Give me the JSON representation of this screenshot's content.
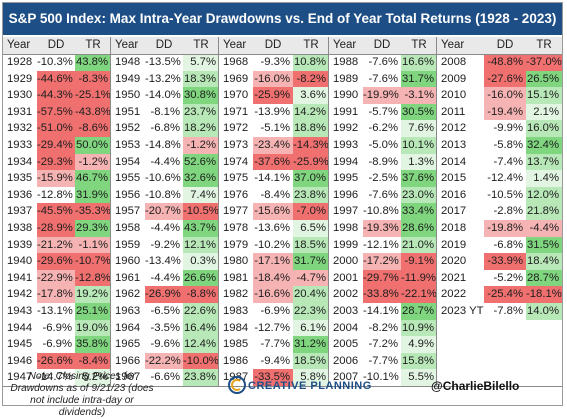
{
  "title": "S&P 500 Index: Max Intra-Year Drawdowns vs. End of Year Total Returns (1928 - 2023)",
  "headers": {
    "year": "Year",
    "dd": "DD",
    "tr": "TR"
  },
  "colors": {
    "title_bg": "#1d4f86",
    "positive": "#7fd67f",
    "negative": "#f07070",
    "header_bg": "#e9e9e9"
  },
  "columns": [
    [
      [
        "1928",
        "-10.3%",
        "43.8%"
      ],
      [
        "1929",
        "-44.6%",
        "-8.3%"
      ],
      [
        "1930",
        "-44.3%",
        "-25.1%"
      ],
      [
        "1931",
        "-57.5%",
        "-43.8%"
      ],
      [
        "1932",
        "-51.0%",
        "-8.6%"
      ],
      [
        "1933",
        "-29.4%",
        "50.0%"
      ],
      [
        "1934",
        "-29.3%",
        "-1.2%"
      ],
      [
        "1935",
        "-15.9%",
        "46.7%"
      ],
      [
        "1936",
        "-12.8%",
        "31.9%"
      ],
      [
        "1937",
        "-45.5%",
        "-35.3%"
      ],
      [
        "1938",
        "-28.9%",
        "29.3%"
      ],
      [
        "1939",
        "-21.2%",
        "-1.1%"
      ],
      [
        "1940",
        "-29.6%",
        "-10.7%"
      ],
      [
        "1941",
        "-22.9%",
        "-12.8%"
      ],
      [
        "1942",
        "-17.8%",
        "19.2%"
      ],
      [
        "1943",
        "-13.1%",
        "25.1%"
      ],
      [
        "1944",
        "-6.9%",
        "19.0%"
      ],
      [
        "1945",
        "-6.9%",
        "35.8%"
      ],
      [
        "1946",
        "-26.6%",
        "-8.4%"
      ],
      [
        "1947",
        "-14.7%",
        "5.2%"
      ]
    ],
    [
      [
        "1948",
        "-13.5%",
        "5.7%"
      ],
      [
        "1949",
        "-13.2%",
        "18.3%"
      ],
      [
        "1950",
        "-14.0%",
        "30.8%"
      ],
      [
        "1951",
        "-8.1%",
        "23.7%"
      ],
      [
        "1952",
        "-6.8%",
        "18.2%"
      ],
      [
        "1953",
        "-14.8%",
        "-1.2%"
      ],
      [
        "1954",
        "-4.4%",
        "52.6%"
      ],
      [
        "1955",
        "-10.6%",
        "32.6%"
      ],
      [
        "1956",
        "-10.8%",
        "7.4%"
      ],
      [
        "1957",
        "-20.7%",
        "-10.5%"
      ],
      [
        "1958",
        "-4.4%",
        "43.7%"
      ],
      [
        "1959",
        "-9.2%",
        "12.1%"
      ],
      [
        "1960",
        "-13.4%",
        "0.3%"
      ],
      [
        "1961",
        "-4.4%",
        "26.6%"
      ],
      [
        "1962",
        "-26.9%",
        "-8.8%"
      ],
      [
        "1963",
        "-6.5%",
        "22.6%"
      ],
      [
        "1964",
        "-3.5%",
        "16.4%"
      ],
      [
        "1965",
        "-9.6%",
        "12.4%"
      ],
      [
        "1966",
        "-22.2%",
        "-10.0%"
      ],
      [
        "1967",
        "-6.6%",
        "23.8%"
      ]
    ],
    [
      [
        "1968",
        "-9.3%",
        "10.8%"
      ],
      [
        "1969",
        "-16.0%",
        "-8.2%"
      ],
      [
        "1970",
        "-25.9%",
        "3.6%"
      ],
      [
        "1971",
        "-13.9%",
        "14.2%"
      ],
      [
        "1972",
        "-5.1%",
        "18.8%"
      ],
      [
        "1973",
        "-23.4%",
        "-14.3%"
      ],
      [
        "1974",
        "-37.6%",
        "-25.9%"
      ],
      [
        "1975",
        "-14.1%",
        "37.0%"
      ],
      [
        "1976",
        "-8.4%",
        "23.8%"
      ],
      [
        "1977",
        "-15.6%",
        "-7.0%"
      ],
      [
        "1978",
        "-13.6%",
        "6.5%"
      ],
      [
        "1979",
        "-10.2%",
        "18.5%"
      ],
      [
        "1980",
        "-17.1%",
        "31.7%"
      ],
      [
        "1981",
        "-18.4%",
        "-4.7%"
      ],
      [
        "1982",
        "-16.6%",
        "20.4%"
      ],
      [
        "1983",
        "-6.9%",
        "22.3%"
      ],
      [
        "1984",
        "-12.7%",
        "6.1%"
      ],
      [
        "1985",
        "-7.7%",
        "31.2%"
      ],
      [
        "1986",
        "-9.4%",
        "18.5%"
      ],
      [
        "1987",
        "-33.5%",
        "5.8%"
      ]
    ],
    [
      [
        "1988",
        "-7.6%",
        "16.6%"
      ],
      [
        "1989",
        "-7.6%",
        "31.7%"
      ],
      [
        "1990",
        "-19.9%",
        "-3.1%"
      ],
      [
        "1991",
        "-5.7%",
        "30.5%"
      ],
      [
        "1992",
        "-6.2%",
        "7.6%"
      ],
      [
        "1993",
        "-5.0%",
        "10.1%"
      ],
      [
        "1994",
        "-8.9%",
        "1.3%"
      ],
      [
        "1995",
        "-2.5%",
        "37.6%"
      ],
      [
        "1996",
        "-7.6%",
        "23.0%"
      ],
      [
        "1997",
        "-10.8%",
        "33.4%"
      ],
      [
        "1998",
        "-19.3%",
        "28.6%"
      ],
      [
        "1999",
        "-12.1%",
        "21.0%"
      ],
      [
        "2000",
        "-17.2%",
        "-9.1%"
      ],
      [
        "2001",
        "-29.7%",
        "-11.9%"
      ],
      [
        "2002",
        "-33.8%",
        "-22.1%"
      ],
      [
        "2003",
        "-14.1%",
        "28.7%"
      ],
      [
        "2004",
        "-8.2%",
        "10.9%"
      ],
      [
        "2005",
        "-7.2%",
        "4.9%"
      ],
      [
        "2006",
        "-7.7%",
        "15.8%"
      ],
      [
        "2007",
        "-10.1%",
        "5.5%"
      ]
    ],
    [
      [
        "2008",
        "-48.8%",
        "-37.0%"
      ],
      [
        "2009",
        "-27.6%",
        "26.5%"
      ],
      [
        "2010",
        "-16.0%",
        "15.1%"
      ],
      [
        "2011",
        "-19.4%",
        "2.1%"
      ],
      [
        "2012",
        "-9.9%",
        "16.0%"
      ],
      [
        "2013",
        "-5.8%",
        "32.4%"
      ],
      [
        "2014",
        "-7.4%",
        "13.7%"
      ],
      [
        "2015",
        "-12.4%",
        "1.4%"
      ],
      [
        "2016",
        "-10.5%",
        "12.0%"
      ],
      [
        "2017",
        "-2.8%",
        "21.8%"
      ],
      [
        "2018",
        "-19.8%",
        "-4.4%"
      ],
      [
        "2019",
        "-6.8%",
        "31.5%"
      ],
      [
        "2020",
        "-33.9%",
        "18.4%"
      ],
      [
        "2021",
        "-5.2%",
        "28.7%"
      ],
      [
        "2022",
        "-25.4%",
        "-18.1%"
      ],
      [
        "2023 YTD",
        "-7.8%",
        "14.0%"
      ]
    ]
  ],
  "footer": {
    "note": "Note: Closing Prices for Drawdowns as of 9/21/23 (does not include intra-day or dividends)",
    "brand": "CREATIVE PLANNING",
    "handle": "@CharlieBilello"
  }
}
